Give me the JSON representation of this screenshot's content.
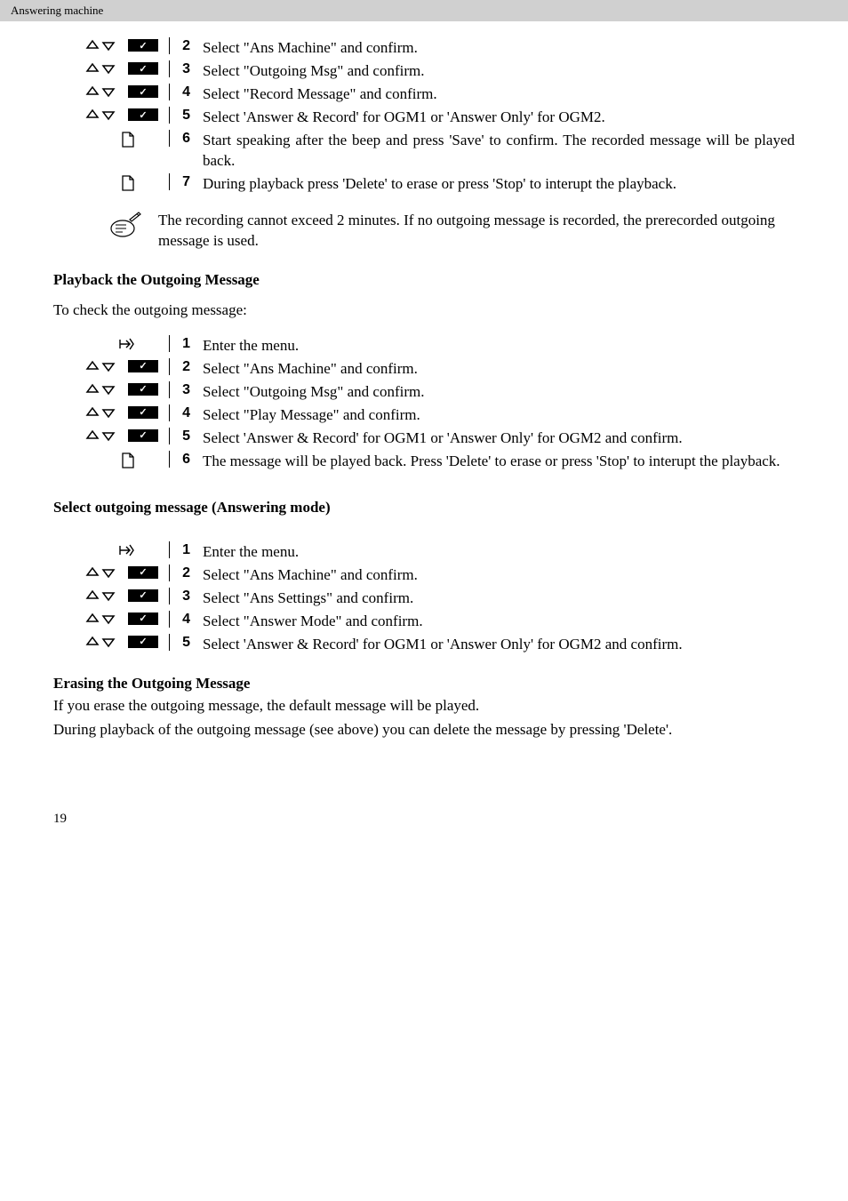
{
  "header": {
    "text": "Answering machine"
  },
  "list1": {
    "steps": [
      {
        "num": "2",
        "text": "Select \"Ans Machine\" and confirm.",
        "icons": "updown-check"
      },
      {
        "num": "3",
        "text": "Select \"Outgoing Msg\" and confirm.",
        "icons": "updown-check"
      },
      {
        "num": "4",
        "text": "Select \"Record Message\" and confirm.",
        "icons": "updown-check"
      },
      {
        "num": "5",
        "text": "Select 'Answer & Record' for OGM1 or 'Answer Only' for OGM2.",
        "icons": "updown-check"
      },
      {
        "num": "6",
        "text": "Start speaking after the beep and press 'Save' to confirm. The recorded message will be played back.",
        "icons": "page"
      },
      {
        "num": "7",
        "text": "During playback press 'Delete' to erase or press 'Stop' to interupt the playback.",
        "icons": "page"
      }
    ]
  },
  "note": {
    "text": "The recording cannot exceed 2 minutes. If no outgoing message is recorded, the prerecorded outgoing message is used."
  },
  "section_playback": {
    "heading": "Playback the Outgoing Message",
    "intro": "To check the outgoing message:",
    "steps": [
      {
        "num": "1",
        "text": "Enter the menu.",
        "icons": "arrow"
      },
      {
        "num": "2",
        "text": "Select \"Ans Machine\" and confirm.",
        "icons": "updown-check"
      },
      {
        "num": "3",
        "text": "Select \"Outgoing Msg\" and confirm.",
        "icons": "updown-check"
      },
      {
        "num": "4",
        "text": "Select \"Play Message\" and confirm.",
        "icons": "updown-check"
      },
      {
        "num": "5",
        "text": "Select 'Answer & Record' for OGM1 or 'Answer Only' for OGM2 and confirm.",
        "icons": "updown-check"
      },
      {
        "num": "6",
        "text": "The message will be played back. Press 'Delete' to erase or press 'Stop' to interupt the playback.",
        "icons": "page"
      }
    ]
  },
  "section_select": {
    "heading": "Select outgoing message (Answering mode)",
    "steps": [
      {
        "num": "1",
        "text": "Enter the menu.",
        "icons": "arrow"
      },
      {
        "num": "2",
        "text": "Select \"Ans Machine\" and confirm.",
        "icons": "updown-check"
      },
      {
        "num": "3",
        "text": "Select \"Ans Settings\" and confirm.",
        "icons": "updown-check"
      },
      {
        "num": "4",
        "text": "Select \"Answer Mode\" and confirm.",
        "icons": "updown-check"
      },
      {
        "num": "5",
        "text": "Select 'Answer & Record' for OGM1 or 'Answer Only' for OGM2 and confirm.",
        "icons": "updown-check"
      }
    ]
  },
  "section_erase": {
    "heading": "Erasing the Outgoing Message",
    "para1": "If you erase the outgoing message, the default message will be played.",
    "para2": "During playback of the outgoing message (see above) you can delete the message by pressing 'Delete'."
  },
  "page_number": "19"
}
